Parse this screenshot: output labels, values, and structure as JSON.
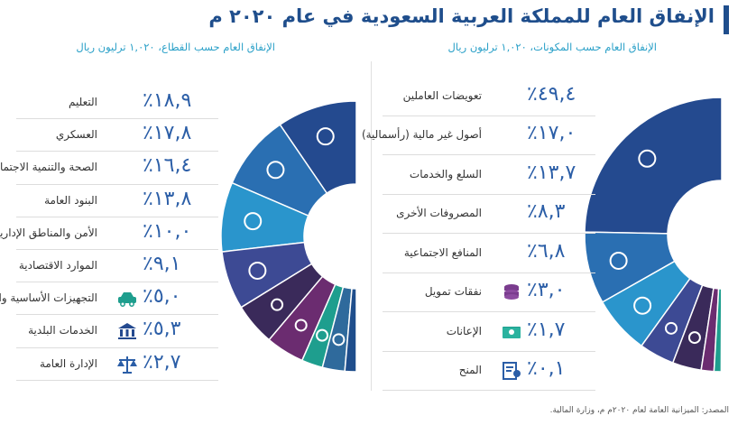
{
  "title": "الإنفاق العام للمملكة العربية السعودية في عام ٢٠٢٠ م",
  "source": "المصدر: الميزانية العامة لعام ٢٠٢٠م م، وزارة المالية.",
  "chart_data": [
    {
      "type": "pie",
      "title": "الإنفاق العام حسب المكونات، ١,٠٢٠ ترليون ريال",
      "categories": [
        "تعويضات العاملين",
        "أصول غير مالية (رأسمالية)",
        "السلع والخدمات",
        "المصروفات الأخرى",
        "المنافع الاجتماعية",
        "نفقات تمويل",
        "الإعانات",
        "المنح"
      ],
      "values": [
        49.4,
        17.0,
        13.7,
        8.3,
        6.8,
        3.0,
        1.7,
        0.1
      ],
      "value_labels": [
        "٤٩,٤٪",
        "١٧,٠٪",
        "١٣,٧٪",
        "٨,٣٪",
        "٦,٨٪",
        "٣,٠٪",
        "١,٧٪",
        "٠,١٪"
      ],
      "colors": [
        "#244a8f",
        "#2a6fb2",
        "#2a95cc",
        "#3d4a94",
        "#3a2a5a",
        "#6b2c70",
        "#1e9e8e",
        "#2f6a9c"
      ]
    },
    {
      "type": "pie",
      "title": "الإنفاق العام حسب القطاع، ١,٠٢٠ ترليون ريال",
      "categories": [
        "التعليم",
        "العسكري",
        "الصحة والتنمية الاجتماعية",
        "البنود العامة",
        "الأمن والمناطق الإدارية",
        "الموارد الاقتصادية",
        "التجهيزات الأساسية والنقل",
        "الخدمات البلدية",
        "الإدارة العامة"
      ],
      "values": [
        18.9,
        17.8,
        16.4,
        13.8,
        10.0,
        9.1,
        5.0,
        5.3,
        2.7
      ],
      "value_labels": [
        "١٨,٩٪",
        "١٧,٨٪",
        "١٦,٤٪",
        "١٣,٨٪",
        "١٠,٠٪",
        "٩,١٪",
        "٥,٠٪",
        "٥,٣٪",
        "٢,٧٪"
      ],
      "colors": [
        "#244a8f",
        "#2a6fb2",
        "#2a95cc",
        "#3d4a94",
        "#3a2a5a",
        "#6b2c70",
        "#1e9e8e",
        "#2f6a9c",
        "#1f4e8c"
      ]
    }
  ],
  "icons": {
    "components": [
      "money-icon",
      "capital-assets-icon",
      "shopping-cart-icon",
      "gears-icon",
      "social-benefits-icon",
      "coins-icon",
      "cash-icon",
      "certificate-icon"
    ],
    "sectors": [
      "graduation-cap-icon",
      "soldier-icon",
      "health-icon",
      "general-items-icon",
      "security-shield-icon",
      "economic-gears-icon",
      "car-icon",
      "building-icon",
      "scales-icon"
    ]
  }
}
